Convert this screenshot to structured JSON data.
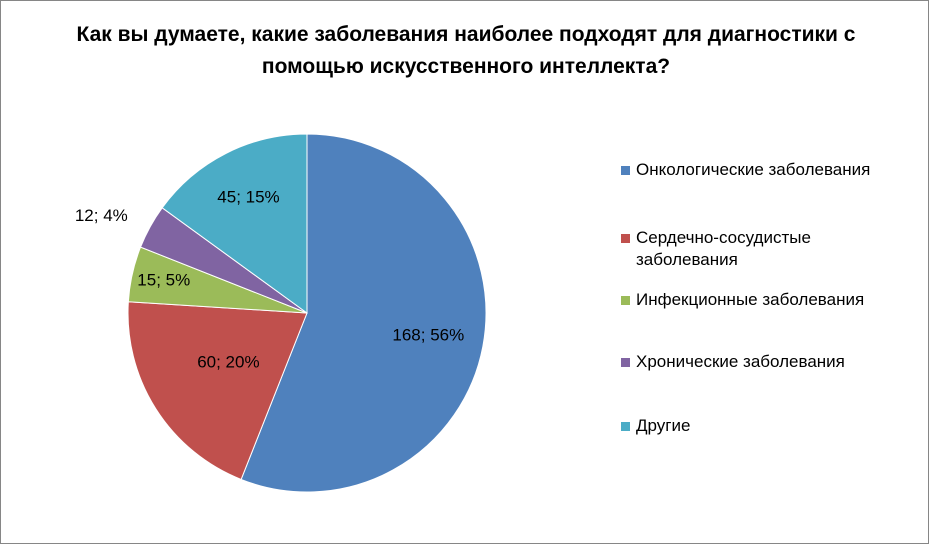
{
  "chart_data": {
    "type": "pie",
    "title": "Как вы думаете, какие заболевания наиболее подходят для диагностики с помощью искусственного интеллекта?",
    "slices": [
      {
        "label": "Онкологические заболевания",
        "value": 168,
        "percent": 56,
        "data_label": "168; 56%",
        "color": "#4F81BD"
      },
      {
        "label": " Сердечно-сосудистые заболевания",
        "value": 60,
        "percent": 20,
        "data_label": "60; 20%",
        "color": "#C0504D"
      },
      {
        "label": "Инфекционные заболевания",
        "value": 15,
        "percent": 5,
        "data_label": "15; 5%",
        "color": "#9BBB59"
      },
      {
        "label": "Хронические заболевания",
        "value": 12,
        "percent": 4,
        "data_label": "12; 4%",
        "color": "#8064A2"
      },
      {
        "label": "Другие",
        "value": 45,
        "percent": 15,
        "data_label": "45; 15%",
        "color": "#4BACC6"
      }
    ],
    "legend_position": "right"
  }
}
